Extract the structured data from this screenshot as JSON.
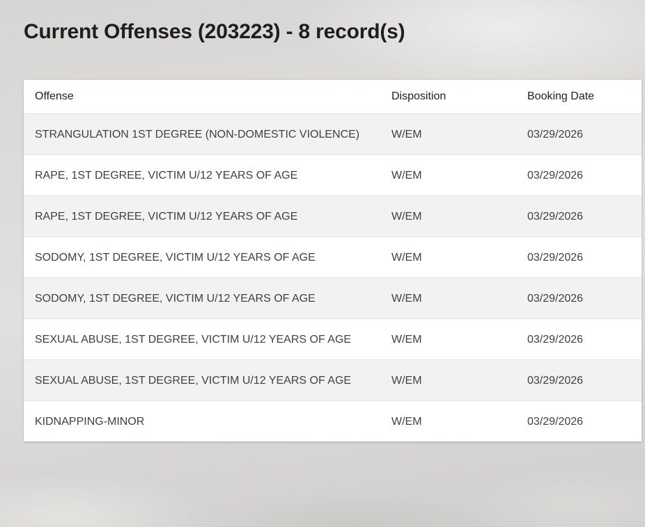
{
  "page": {
    "title": "Current Offenses (203223) - 8 record(s)"
  },
  "table": {
    "columns": [
      {
        "key": "offense",
        "label": "Offense"
      },
      {
        "key": "disposition",
        "label": "Disposition"
      },
      {
        "key": "booking_date",
        "label": "Booking Date"
      }
    ],
    "rows": [
      {
        "offense": "STRANGULATION 1ST DEGREE (NON-DOMESTIC VIOLENCE)",
        "disposition": "W/EM",
        "booking_date": "03/29/2026"
      },
      {
        "offense": "RAPE, 1ST DEGREE, VICTIM U/12 YEARS OF AGE",
        "disposition": "W/EM",
        "booking_date": "03/29/2026"
      },
      {
        "offense": "RAPE, 1ST DEGREE, VICTIM U/12 YEARS OF AGE",
        "disposition": "W/EM",
        "booking_date": "03/29/2026"
      },
      {
        "offense": "SODOMY, 1ST DEGREE, VICTIM U/12 YEARS OF AGE",
        "disposition": "W/EM",
        "booking_date": "03/29/2026"
      },
      {
        "offense": "SODOMY, 1ST DEGREE, VICTIM U/12 YEARS OF AGE",
        "disposition": "W/EM",
        "booking_date": "03/29/2026"
      },
      {
        "offense": "SEXUAL ABUSE, 1ST DEGREE, VICTIM U/12 YEARS OF AGE",
        "disposition": "W/EM",
        "booking_date": "03/29/2026"
      },
      {
        "offense": "SEXUAL ABUSE, 1ST DEGREE, VICTIM U/12 YEARS OF AGE",
        "disposition": "W/EM",
        "booking_date": "03/29/2026"
      },
      {
        "offense": "KIDNAPPING-MINOR",
        "disposition": "W/EM",
        "booking_date": "03/29/2026"
      }
    ],
    "record_count": "8"
  },
  "colors": {
    "page_background": "#d9d8d6",
    "card_background": "#ffffff",
    "row_stripe": "#f2f2f2",
    "row_border": "#e2e2e2",
    "title_text": "#1e1e1e",
    "header_text": "#212121",
    "cell_text": "#3e4144"
  }
}
